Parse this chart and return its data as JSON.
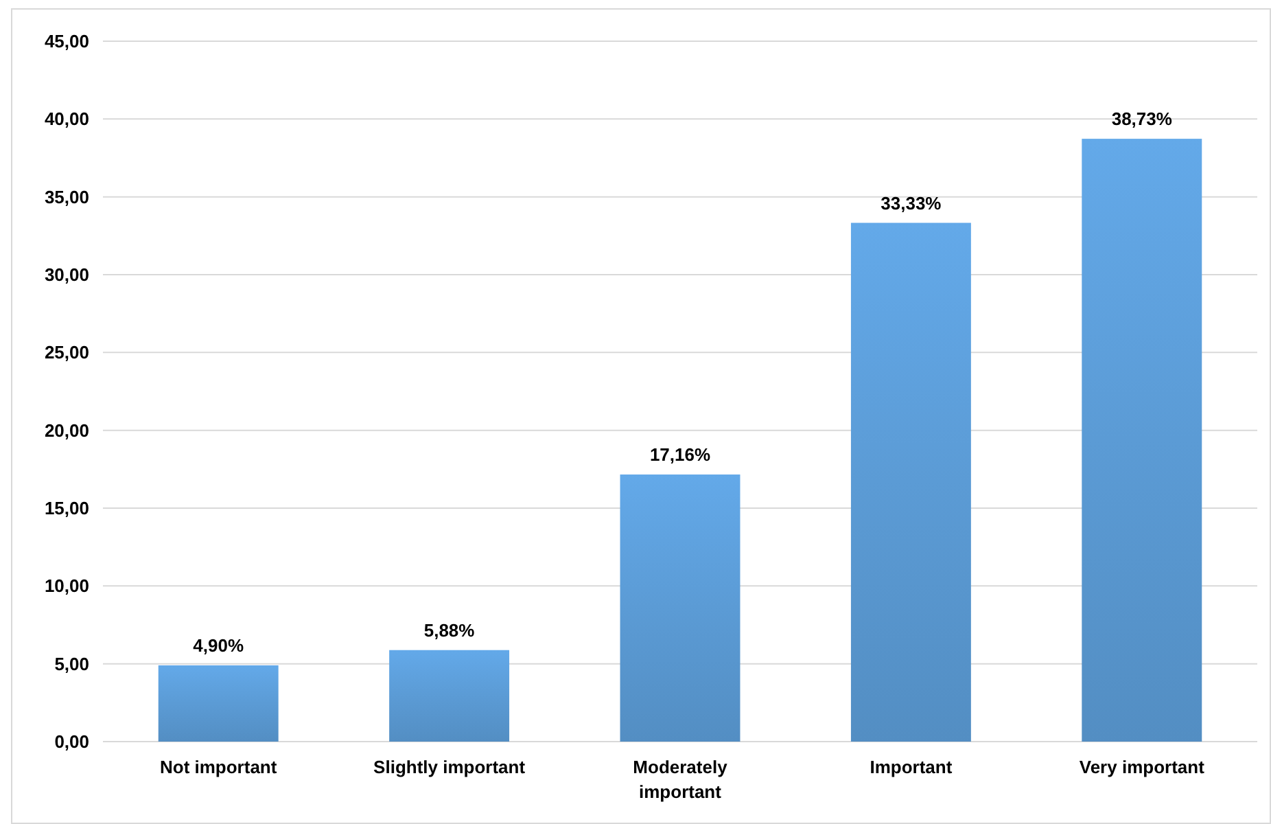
{
  "chart_data": {
    "type": "bar",
    "categories": [
      "Not important",
      "Slightly important",
      "Moderately important",
      "Important",
      "Very important"
    ],
    "values": [
      4.9,
      5.88,
      17.16,
      33.33,
      38.73
    ],
    "value_labels": [
      "4,90%",
      "5,88%",
      "17,16%",
      "33,33%",
      "38,73%"
    ],
    "color": "#5b9bd5",
    "ylim": [
      0,
      45
    ],
    "yticks": [
      {
        "value": 0,
        "label": "0,00"
      },
      {
        "value": 5,
        "label": "5,00"
      },
      {
        "value": 10,
        "label": "10,00"
      },
      {
        "value": 15,
        "label": "15,00"
      },
      {
        "value": 20,
        "label": "20,00"
      },
      {
        "value": 25,
        "label": "25,00"
      },
      {
        "value": 30,
        "label": "30,00"
      },
      {
        "value": 35,
        "label": "35,00"
      },
      {
        "value": 40,
        "label": "40,00"
      },
      {
        "value": 45,
        "label": "45,00"
      }
    ],
    "grid": true
  }
}
